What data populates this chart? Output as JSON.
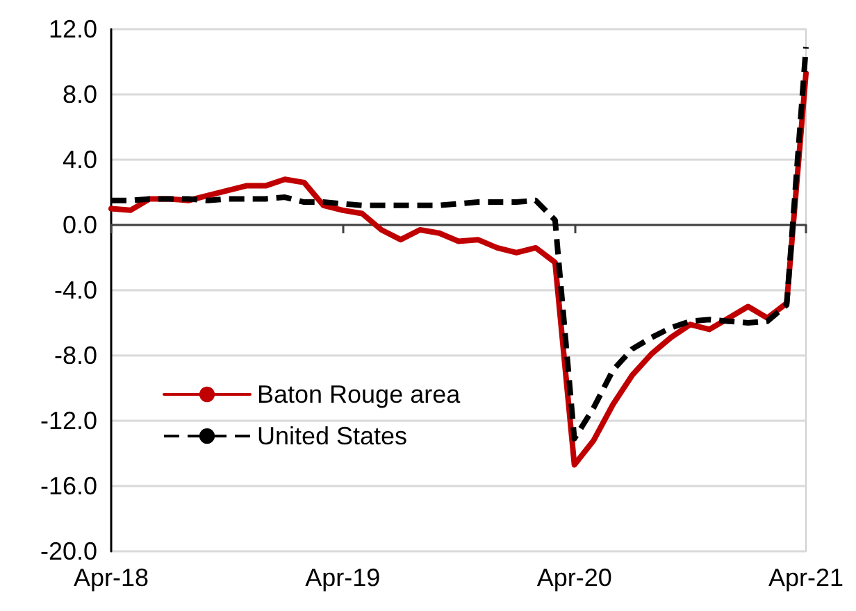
{
  "chart_data": {
    "type": "line",
    "categories": [
      "Apr-18",
      null,
      null,
      null,
      null,
      null,
      null,
      null,
      null,
      null,
      null,
      null,
      "Apr-19",
      null,
      null,
      null,
      null,
      null,
      null,
      null,
      null,
      null,
      null,
      null,
      "Apr-20",
      null,
      null,
      null,
      null,
      null,
      null,
      null,
      null,
      null,
      null,
      null,
      "Apr-21"
    ],
    "series": [
      {
        "name": "Baton Rouge area",
        "color": "#c00000",
        "line_style": "solid",
        "values": [
          1.0,
          0.9,
          1.6,
          1.6,
          1.5,
          1.8,
          2.1,
          2.4,
          2.4,
          2.8,
          2.6,
          1.2,
          0.9,
          0.7,
          -0.3,
          -0.9,
          -0.3,
          -0.5,
          -1.0,
          -0.9,
          -1.4,
          -1.7,
          -1.4,
          -2.3,
          -14.7,
          -13.2,
          -11.0,
          -9.2,
          -7.9,
          -6.9,
          -6.1,
          -6.4,
          -5.7,
          -5.0,
          -5.7,
          -4.8,
          9.3
        ]
      },
      {
        "name": "United States",
        "color": "#000000",
        "line_style": "dashed",
        "values": [
          1.5,
          1.5,
          1.6,
          1.6,
          1.6,
          1.5,
          1.6,
          1.6,
          1.6,
          1.7,
          1.4,
          1.4,
          1.3,
          1.2,
          1.2,
          1.2,
          1.2,
          1.2,
          1.3,
          1.4,
          1.4,
          1.4,
          1.5,
          0.3,
          -13.1,
          -11.2,
          -8.9,
          -7.6,
          -6.9,
          -6.3,
          -5.9,
          -5.8,
          -5.9,
          -6.0,
          -5.9,
          -4.9,
          10.9
        ]
      }
    ],
    "ylim": [
      -20,
      12
    ],
    "yticks": [
      {
        "value": -20,
        "label": "-20.0"
      },
      {
        "value": -16,
        "label": "-16.0"
      },
      {
        "value": -12,
        "label": "-12.0"
      },
      {
        "value": -8,
        "label": "-8.0"
      },
      {
        "value": -4,
        "label": "-4.0"
      },
      {
        "value": 0,
        "label": "0.0"
      },
      {
        "value": 4,
        "label": "4.0"
      },
      {
        "value": 8,
        "label": "8.0"
      },
      {
        "value": 12,
        "label": "12.0"
      }
    ],
    "grid": "y",
    "legend": "bottom left",
    "marker": "none"
  }
}
